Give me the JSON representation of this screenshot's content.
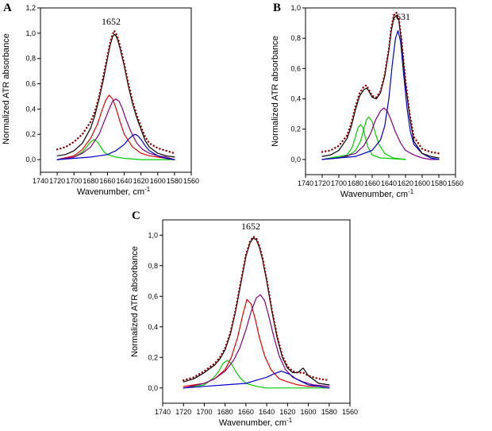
{
  "chart_data": [
    {
      "panel": "A",
      "type": "line",
      "peak_label": "1652",
      "xlabel": "Wavenumber, cm",
      "xlabel_sup": "-1",
      "ylabel": "Normalized ATR absorbance",
      "xlim": [
        1740,
        1560
      ],
      "ylim": [
        -0.1,
        1.2
      ],
      "xticks": [
        1740,
        1720,
        1700,
        1680,
        1660,
        1640,
        1620,
        1600,
        1580,
        1560
      ],
      "yticks": [
        0.0,
        0.2,
        0.4,
        0.6,
        0.8,
        1.0,
        1.2
      ],
      "ytick_labels": [
        "0,0",
        "0,2",
        "0,4",
        "0,6",
        "0,8",
        "1,0",
        "1,2"
      ],
      "series": [
        {
          "name": "measured",
          "color": "#000000",
          "style": "solid",
          "x": [
            1720,
            1710,
            1700,
            1690,
            1680,
            1675,
            1670,
            1665,
            1660,
            1657,
            1654,
            1652,
            1650,
            1648,
            1645,
            1640,
            1635,
            1630,
            1625,
            1620,
            1615,
            1610,
            1600,
            1590,
            1580
          ],
          "y": [
            0.03,
            0.04,
            0.07,
            0.13,
            0.25,
            0.35,
            0.48,
            0.63,
            0.8,
            0.9,
            0.97,
            0.99,
            0.98,
            0.95,
            0.88,
            0.74,
            0.58,
            0.44,
            0.33,
            0.24,
            0.15,
            0.1,
            0.05,
            0.03,
            0.02
          ]
        },
        {
          "name": "fit",
          "color": "#8b0000",
          "style": "dotted",
          "x": [
            1720,
            1710,
            1700,
            1690,
            1680,
            1675,
            1670,
            1665,
            1660,
            1657,
            1654,
            1652,
            1650,
            1648,
            1645,
            1640,
            1635,
            1630,
            1625,
            1620,
            1615,
            1610,
            1600,
            1590,
            1580
          ],
          "y": [
            0.08,
            0.1,
            0.14,
            0.2,
            0.3,
            0.38,
            0.5,
            0.66,
            0.82,
            0.92,
            0.99,
            1.02,
            1.0,
            0.97,
            0.9,
            0.76,
            0.6,
            0.46,
            0.35,
            0.26,
            0.18,
            0.13,
            0.09,
            0.07,
            0.05
          ]
        },
        {
          "name": "band-1676",
          "color": "#00cc00",
          "style": "solid",
          "x": [
            1720,
            1700,
            1690,
            1685,
            1680,
            1676,
            1672,
            1668,
            1664,
            1660,
            1650,
            1640,
            1620,
            1600,
            1580
          ],
          "y": [
            0.0,
            0.02,
            0.06,
            0.1,
            0.14,
            0.16,
            0.14,
            0.1,
            0.06,
            0.04,
            0.02,
            0.01,
            0.0,
            0.0,
            0.0
          ]
        },
        {
          "name": "band-1658",
          "color": "#e00000",
          "style": "solid",
          "x": [
            1720,
            1700,
            1690,
            1680,
            1672,
            1666,
            1662,
            1658,
            1654,
            1650,
            1645,
            1640,
            1630,
            1620,
            1610,
            1600,
            1590,
            1580
          ],
          "y": [
            0.0,
            0.03,
            0.08,
            0.17,
            0.28,
            0.4,
            0.47,
            0.51,
            0.48,
            0.41,
            0.3,
            0.2,
            0.1,
            0.05,
            0.03,
            0.02,
            0.01,
            0.0
          ]
        },
        {
          "name": "band-1650",
          "color": "#800080",
          "style": "solid",
          "x": [
            1720,
            1700,
            1690,
            1680,
            1670,
            1664,
            1658,
            1654,
            1650,
            1646,
            1642,
            1638,
            1632,
            1625,
            1618,
            1610,
            1600,
            1590,
            1580
          ],
          "y": [
            0.0,
            0.02,
            0.05,
            0.1,
            0.2,
            0.3,
            0.4,
            0.46,
            0.48,
            0.46,
            0.4,
            0.32,
            0.22,
            0.13,
            0.08,
            0.05,
            0.03,
            0.02,
            0.0
          ]
        },
        {
          "name": "band-1628",
          "color": "#0000cc",
          "style": "solid",
          "x": [
            1720,
            1700,
            1680,
            1660,
            1650,
            1640,
            1635,
            1630,
            1627,
            1624,
            1620,
            1615,
            1610,
            1600,
            1590,
            1580
          ],
          "y": [
            0.0,
            0.01,
            0.02,
            0.04,
            0.07,
            0.12,
            0.16,
            0.19,
            0.2,
            0.19,
            0.16,
            0.11,
            0.07,
            0.03,
            0.01,
            0.0
          ]
        }
      ]
    },
    {
      "panel": "B",
      "type": "line",
      "peak_label": "1631",
      "xlabel": "Wavenumber, cm",
      "xlabel_sup": "-1",
      "ylabel": "Normalized ATR absorbance",
      "xlim": [
        1740,
        1560
      ],
      "ylim": [
        -0.1,
        1.0
      ],
      "xticks": [
        1740,
        1720,
        1700,
        1680,
        1660,
        1640,
        1620,
        1600,
        1580,
        1560
      ],
      "yticks": [
        0.0,
        0.2,
        0.4,
        0.6,
        0.8,
        1.0
      ],
      "ytick_labels": [
        "0,0",
        "0,2",
        "0,4",
        "0,6",
        "0,8",
        "1,0"
      ],
      "series": [
        {
          "name": "measured",
          "color": "#000000",
          "style": "solid",
          "x": [
            1720,
            1710,
            1700,
            1690,
            1685,
            1680,
            1675,
            1670,
            1667,
            1665,
            1660,
            1655,
            1650,
            1645,
            1640,
            1637,
            1634,
            1631,
            1628,
            1625,
            1620,
            1615,
            1610,
            1600,
            1590,
            1580
          ],
          "y": [
            0.02,
            0.03,
            0.06,
            0.14,
            0.22,
            0.33,
            0.42,
            0.46,
            0.47,
            0.46,
            0.41,
            0.4,
            0.44,
            0.55,
            0.72,
            0.85,
            0.93,
            0.95,
            0.92,
            0.78,
            0.5,
            0.28,
            0.12,
            0.04,
            0.02,
            0.01
          ]
        },
        {
          "name": "fit",
          "color": "#8b0000",
          "style": "dotted",
          "x": [
            1720,
            1710,
            1700,
            1690,
            1685,
            1680,
            1675,
            1670,
            1667,
            1665,
            1660,
            1655,
            1650,
            1645,
            1640,
            1637,
            1634,
            1631,
            1628,
            1625,
            1620,
            1615,
            1610,
            1600,
            1590,
            1580
          ],
          "y": [
            0.05,
            0.06,
            0.09,
            0.16,
            0.24,
            0.35,
            0.44,
            0.48,
            0.49,
            0.47,
            0.42,
            0.41,
            0.45,
            0.56,
            0.73,
            0.87,
            0.95,
            0.97,
            0.93,
            0.8,
            0.52,
            0.3,
            0.15,
            0.07,
            0.05,
            0.04
          ]
        },
        {
          "name": "band-1674",
          "color": "#00cc00",
          "style": "solid",
          "x": [
            1720,
            1690,
            1684,
            1680,
            1677,
            1674,
            1671,
            1668,
            1665,
            1660,
            1650,
            1620
          ],
          "y": [
            0.0,
            0.03,
            0.08,
            0.15,
            0.21,
            0.23,
            0.21,
            0.14,
            0.08,
            0.03,
            0.01,
            0.0
          ]
        },
        {
          "name": "band-1664",
          "color": "#00cc00",
          "style": "solid",
          "x": [
            1720,
            1690,
            1680,
            1674,
            1670,
            1667,
            1664,
            1660,
            1656,
            1652,
            1645,
            1635,
            1620
          ],
          "y": [
            0.0,
            0.02,
            0.06,
            0.12,
            0.2,
            0.26,
            0.28,
            0.25,
            0.17,
            0.1,
            0.04,
            0.01,
            0.0
          ]
        },
        {
          "name": "band-1646",
          "color": "#800080",
          "style": "solid",
          "x": [
            1720,
            1700,
            1680,
            1670,
            1662,
            1656,
            1650,
            1646,
            1642,
            1638,
            1632,
            1626,
            1620,
            1610,
            1600,
            1590,
            1580
          ],
          "y": [
            0.0,
            0.01,
            0.04,
            0.09,
            0.17,
            0.26,
            0.32,
            0.34,
            0.32,
            0.27,
            0.18,
            0.11,
            0.06,
            0.03,
            0.01,
            0.0,
            0.0
          ]
        },
        {
          "name": "band-1629",
          "color": "#0000cc",
          "style": "solid",
          "x": [
            1720,
            1680,
            1660,
            1650,
            1645,
            1640,
            1636,
            1632,
            1629,
            1626,
            1622,
            1618,
            1614,
            1610,
            1600,
            1590,
            1580
          ],
          "y": [
            0.0,
            0.02,
            0.06,
            0.13,
            0.22,
            0.4,
            0.62,
            0.8,
            0.85,
            0.78,
            0.55,
            0.33,
            0.18,
            0.1,
            0.04,
            0.01,
            0.0
          ]
        }
      ]
    },
    {
      "panel": "C",
      "type": "line",
      "peak_label": "1652",
      "xlabel": "Wavenumber, cm",
      "xlabel_sup": "-1",
      "ylabel": "Normalized ATR absorbance",
      "xlim": [
        1740,
        1560
      ],
      "ylim": [
        -0.1,
        1.1
      ],
      "xticks": [
        1740,
        1720,
        1700,
        1680,
        1660,
        1640,
        1620,
        1600,
        1580,
        1560
      ],
      "yticks": [
        0.0,
        0.2,
        0.4,
        0.6,
        0.8,
        1.0
      ],
      "ytick_labels": [
        "0,0",
        "0,2",
        "0,4",
        "0,6",
        "0,8",
        "1,0"
      ],
      "series": [
        {
          "name": "measured",
          "color": "#000000",
          "style": "solid",
          "x": [
            1720,
            1710,
            1700,
            1690,
            1685,
            1680,
            1675,
            1670,
            1665,
            1660,
            1656,
            1653,
            1650,
            1647,
            1644,
            1640,
            1635,
            1630,
            1625,
            1620,
            1615,
            1610,
            1605,
            1600,
            1590,
            1580
          ],
          "y": [
            0.04,
            0.06,
            0.1,
            0.15,
            0.19,
            0.25,
            0.35,
            0.5,
            0.68,
            0.86,
            0.95,
            0.98,
            0.97,
            0.92,
            0.84,
            0.7,
            0.5,
            0.33,
            0.2,
            0.13,
            0.1,
            0.1,
            0.13,
            0.08,
            0.03,
            0.02
          ]
        },
        {
          "name": "fit",
          "color": "#8b0000",
          "style": "dotted",
          "x": [
            1720,
            1710,
            1700,
            1690,
            1685,
            1680,
            1675,
            1670,
            1665,
            1660,
            1656,
            1653,
            1650,
            1647,
            1644,
            1640,
            1635,
            1630,
            1625,
            1620,
            1615,
            1610,
            1605,
            1600,
            1590,
            1580
          ],
          "y": [
            0.05,
            0.07,
            0.11,
            0.16,
            0.2,
            0.26,
            0.36,
            0.51,
            0.69,
            0.87,
            0.96,
            0.99,
            0.98,
            0.93,
            0.85,
            0.71,
            0.51,
            0.34,
            0.21,
            0.14,
            0.11,
            0.1,
            0.1,
            0.08,
            0.06,
            0.05
          ]
        },
        {
          "name": "band-1678",
          "color": "#00cc00",
          "style": "solid",
          "x": [
            1720,
            1700,
            1692,
            1686,
            1682,
            1678,
            1674,
            1670,
            1666,
            1660,
            1650,
            1640,
            1620,
            1580
          ],
          "y": [
            0.0,
            0.02,
            0.06,
            0.11,
            0.16,
            0.18,
            0.16,
            0.11,
            0.07,
            0.03,
            0.01,
            0.0,
            0.0,
            0.0
          ]
        },
        {
          "name": "band-1659",
          "color": "#e00000",
          "style": "solid",
          "x": [
            1720,
            1700,
            1690,
            1680,
            1674,
            1668,
            1663,
            1659,
            1655,
            1651,
            1647,
            1642,
            1636,
            1628,
            1620,
            1610,
            1600,
            1590,
            1580
          ],
          "y": [
            0.01,
            0.03,
            0.06,
            0.12,
            0.2,
            0.33,
            0.48,
            0.58,
            0.55,
            0.45,
            0.33,
            0.21,
            0.12,
            0.06,
            0.04,
            0.02,
            0.01,
            0.01,
            0.0
          ]
        },
        {
          "name": "band-1646",
          "color": "#800080",
          "style": "solid",
          "x": [
            1720,
            1700,
            1690,
            1680,
            1672,
            1666,
            1660,
            1655,
            1650,
            1646,
            1642,
            1638,
            1633,
            1628,
            1622,
            1615,
            1605,
            1595,
            1580
          ],
          "y": [
            0.0,
            0.03,
            0.06,
            0.11,
            0.18,
            0.26,
            0.38,
            0.5,
            0.59,
            0.61,
            0.57,
            0.47,
            0.33,
            0.21,
            0.12,
            0.07,
            0.04,
            0.02,
            0.01
          ]
        },
        {
          "name": "band-1625",
          "color": "#0000cc",
          "style": "solid",
          "x": [
            1720,
            1700,
            1680,
            1660,
            1650,
            1640,
            1634,
            1630,
            1626,
            1622,
            1618,
            1612,
            1606,
            1600,
            1590,
            1580
          ],
          "y": [
            0.0,
            0.01,
            0.02,
            0.03,
            0.05,
            0.07,
            0.09,
            0.1,
            0.11,
            0.1,
            0.09,
            0.06,
            0.04,
            0.02,
            0.01,
            0.0
          ]
        }
      ]
    }
  ]
}
